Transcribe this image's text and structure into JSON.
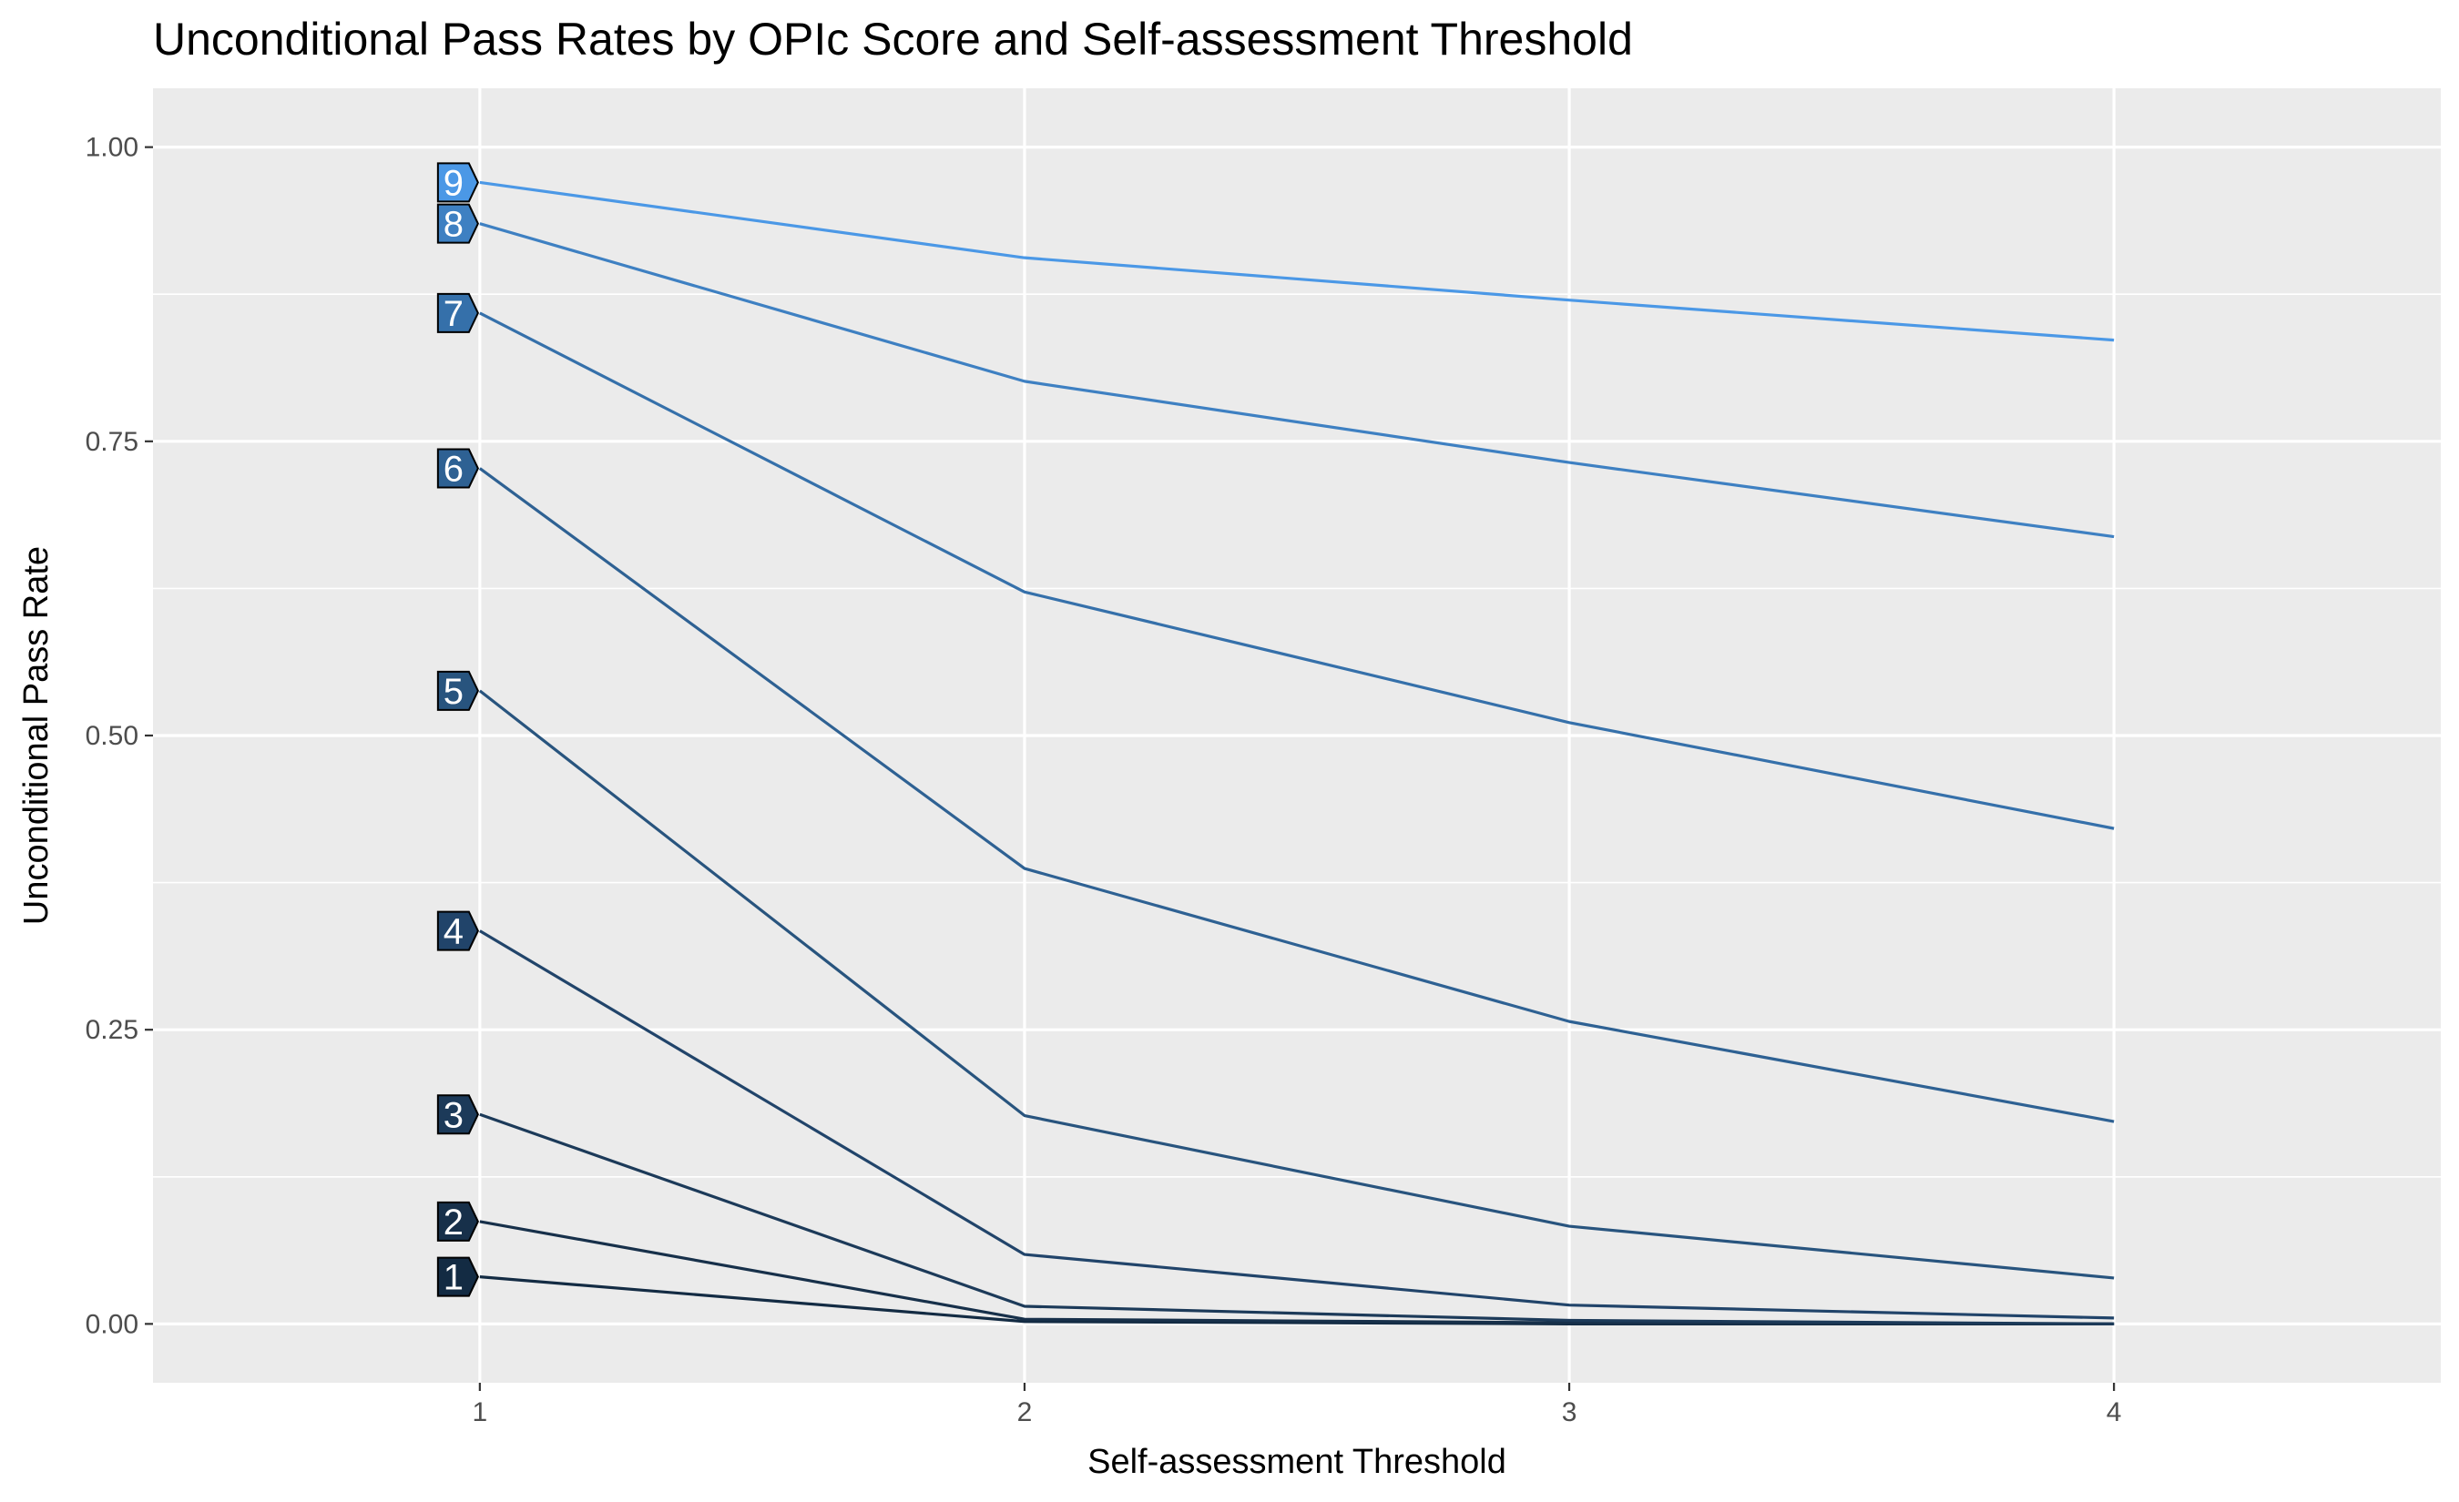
{
  "chart_data": {
    "type": "line",
    "title": "Unconditional Pass Rates by OPIc Score and Self-assessment Threshold",
    "xlabel": "Self-assessment Threshold",
    "ylabel": "Unconditional Pass Rate",
    "x": [
      1,
      2,
      3,
      4
    ],
    "xlim": [
      0.4,
      4.6
    ],
    "ylim": [
      -0.05,
      1.05
    ],
    "x_ticks": [
      "1",
      "2",
      "3",
      "4"
    ],
    "y_ticks": [
      "0.00",
      "0.25",
      "0.50",
      "0.75",
      "1.00"
    ],
    "grid": true,
    "legend": "none",
    "series": [
      {
        "name": "1",
        "color": "#132b43",
        "values": [
          0.04,
          0.002,
          0.0,
          0.0
        ]
      },
      {
        "name": "2",
        "color": "#17304a",
        "values": [
          0.087,
          0.004,
          0.001,
          0.0
        ]
      },
      {
        "name": "3",
        "color": "#1c3a59",
        "values": [
          0.178,
          0.015,
          0.003,
          0.0
        ]
      },
      {
        "name": "4",
        "color": "#21446a",
        "values": [
          0.334,
          0.059,
          0.016,
          0.005
        ]
      },
      {
        "name": "5",
        "color": "#28547e",
        "values": [
          0.538,
          0.177,
          0.083,
          0.039
        ]
      },
      {
        "name": "6",
        "color": "#2e6193",
        "values": [
          0.727,
          0.387,
          0.257,
          0.172
        ]
      },
      {
        "name": "7",
        "color": "#3570aa",
        "values": [
          0.859,
          0.622,
          0.511,
          0.421
        ]
      },
      {
        "name": "8",
        "color": "#3e80c2",
        "values": [
          0.935,
          0.801,
          0.732,
          0.669
        ]
      },
      {
        "name": "9",
        "color": "#4b98e6",
        "values": [
          0.97,
          0.906,
          0.87,
          0.836
        ]
      }
    ]
  }
}
